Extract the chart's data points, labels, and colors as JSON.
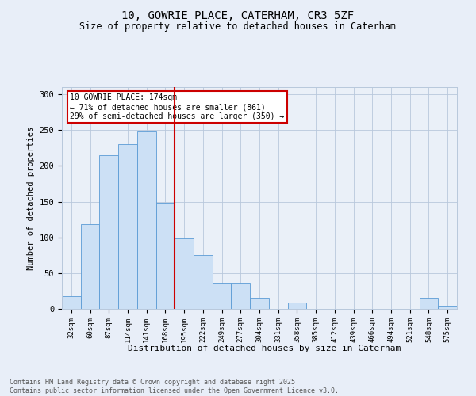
{
  "title": "10, GOWRIE PLACE, CATERHAM, CR3 5ZF",
  "subtitle": "Size of property relative to detached houses in Caterham",
  "xlabel": "Distribution of detached houses by size in Caterham",
  "ylabel": "Number of detached properties",
  "categories": [
    "32sqm",
    "60sqm",
    "87sqm",
    "114sqm",
    "141sqm",
    "168sqm",
    "195sqm",
    "222sqm",
    "249sqm",
    "277sqm",
    "304sqm",
    "331sqm",
    "358sqm",
    "385sqm",
    "412sqm",
    "439sqm",
    "466sqm",
    "494sqm",
    "521sqm",
    "548sqm",
    "575sqm"
  ],
  "values": [
    18,
    119,
    215,
    230,
    248,
    148,
    99,
    75,
    37,
    37,
    16,
    0,
    9,
    0,
    0,
    0,
    0,
    0,
    0,
    15,
    4
  ],
  "bar_color": "#cce0f5",
  "bar_edge_color": "#5b9bd5",
  "vline_index": 5,
  "vline_color": "#cc0000",
  "annotation_text": "10 GOWRIE PLACE: 174sqm\n← 71% of detached houses are smaller (861)\n29% of semi-detached houses are larger (350) →",
  "annotation_box_color": "#cc0000",
  "ylim": [
    0,
    310
  ],
  "yticks": [
    0,
    50,
    100,
    150,
    200,
    250,
    300
  ],
  "footer": "Contains HM Land Registry data © Crown copyright and database right 2025.\nContains public sector information licensed under the Open Government Licence v3.0.",
  "bg_color": "#e8eef8",
  "plot_bg_color": "#eaf0f8",
  "grid_color": "#b8c8dc"
}
